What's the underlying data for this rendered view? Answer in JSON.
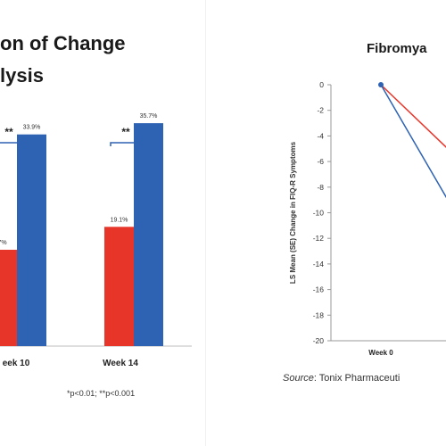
{
  "left": {
    "title_line1": "on of Change",
    "title_line2": "lysis",
    "footnote": "*p<0.01; **p<0.001",
    "colors": {
      "red": "#e8352a",
      "blue": "#2e62b3",
      "bracket": "#2e62b3"
    }
  },
  "right": {
    "title": "Fibromya",
    "source_label": "Source",
    "source_text": ": Tonix Pharmaceuti",
    "colors": {
      "red": "#e8352a",
      "blue": "#2e62b3"
    }
  },
  "chart_data": [
    {
      "type": "bar",
      "categories": [
        "eek 10",
        "Week 14"
      ],
      "series": [
        {
          "values": [
            null,
            19.1
          ],
          "labels": [
            "7%",
            "19.1%"
          ],
          "color": "#e8352a"
        },
        {
          "values": [
            33.9,
            35.7
          ],
          "labels": [
            "33.9%",
            "35.7%"
          ],
          "color": "#2e62b3"
        }
      ],
      "significance": [
        "**",
        "**"
      ],
      "ylim": [
        0,
        40
      ],
      "grid": false
    },
    {
      "type": "line",
      "ylabel": "LS Mean (SE) Change in FIQ-R Symptoms",
      "yticks": [
        0,
        -2,
        -4,
        -6,
        -8,
        -10,
        -12,
        -14,
        -16,
        -18,
        -20
      ],
      "ylim": [
        -20,
        0
      ],
      "x_labels": [
        "Week 0"
      ],
      "series": [
        {
          "color": "#e8352a",
          "points": [
            {
              "x": 0,
              "y": 0
            },
            {
              "x": 1,
              "y": -5
            }
          ]
        },
        {
          "color": "#2e62b3",
          "points": [
            {
              "x": 0,
              "y": 0
            },
            {
              "x": 1,
              "y": -9
            }
          ]
        }
      ],
      "grid": false
    }
  ]
}
